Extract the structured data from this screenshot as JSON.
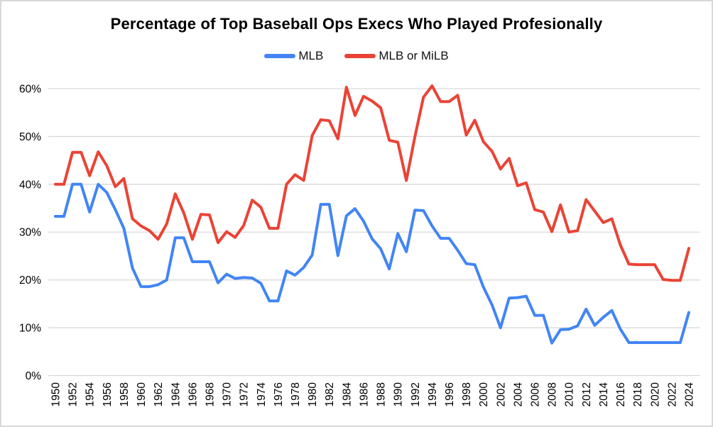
{
  "frame": {
    "background": "#ffffff",
    "border_color": "#d8d8d8"
  },
  "chart_data": {
    "type": "line",
    "title": "Percentage of Top Baseball Ops Execs Who Played Profesionally",
    "legend_position": "top",
    "grid": "horizontal",
    "gridline_color": "#d9d9d9",
    "ylim": [
      0,
      60
    ],
    "ytick_labels": [
      "0%",
      "10%",
      "20%",
      "30%",
      "40%",
      "50%",
      "60%"
    ],
    "xtick_step": 2,
    "x": [
      1950,
      1951,
      1952,
      1953,
      1954,
      1955,
      1956,
      1957,
      1958,
      1959,
      1960,
      1961,
      1962,
      1963,
      1964,
      1965,
      1966,
      1967,
      1968,
      1969,
      1970,
      1971,
      1972,
      1973,
      1974,
      1975,
      1976,
      1977,
      1978,
      1979,
      1980,
      1981,
      1982,
      1983,
      1984,
      1985,
      1986,
      1987,
      1988,
      1989,
      1990,
      1991,
      1992,
      1993,
      1994,
      1995,
      1996,
      1997,
      1998,
      1999,
      2000,
      2001,
      2002,
      2003,
      2004,
      2005,
      2006,
      2007,
      2008,
      2009,
      2010,
      2011,
      2012,
      2013,
      2014,
      2015,
      2016,
      2017,
      2018,
      2019,
      2020,
      2021,
      2022,
      2023,
      2024
    ],
    "series": [
      {
        "name": "MLB",
        "color": "#4285F4",
        "values": [
          33.3,
          33.3,
          40,
          40,
          34.2,
          40,
          38.3,
          34.7,
          30.8,
          22.5,
          18.6,
          18.6,
          19,
          20,
          28.8,
          28.8,
          23.8,
          23.8,
          23.8,
          19.4,
          21.2,
          20.3,
          20.5,
          20.4,
          19.3,
          15.6,
          15.6,
          21.9,
          21,
          22.6,
          25.2,
          35.8,
          35.8,
          25.1,
          33.4,
          34.9,
          32.3,
          28.6,
          26.5,
          22.3,
          29.7,
          25.9,
          34.6,
          34.5,
          31.3,
          28.7,
          28.7,
          26.2,
          23.4,
          23.2,
          18.5,
          14.8,
          10,
          16.2,
          16.3,
          16.6,
          12.6,
          12.6,
          6.8,
          9.6,
          9.7,
          10.4,
          13.9,
          10.5,
          12.2,
          13.6,
          9.7,
          6.9,
          6.9,
          6.9,
          6.9,
          6.9,
          6.9,
          6.9,
          13.2
        ]
      },
      {
        "name": "MLB or MiLB",
        "color": "#EA4335",
        "values": [
          40,
          40,
          46.7,
          46.7,
          41.8,
          46.8,
          43.9,
          39.5,
          41.2,
          32.8,
          31.3,
          30.3,
          28.5,
          31.7,
          38,
          34,
          28.5,
          33.7,
          33.6,
          27.8,
          30.1,
          28.9,
          31.4,
          36.7,
          35.2,
          30.8,
          30.8,
          40,
          42,
          40.8,
          50.2,
          53.5,
          53.3,
          49.5,
          60.3,
          54.4,
          58.4,
          57.4,
          56,
          49.2,
          48.8,
          40.8,
          50,
          58.2,
          60.6,
          57.3,
          57.3,
          58.6,
          50.3,
          53.4,
          48.9,
          46.9,
          43.2,
          45.4,
          39.7,
          40.3,
          34.7,
          34.2,
          30.1,
          35.7,
          30,
          30.3,
          36.8,
          34.4,
          32,
          32.8,
          27.3,
          23.3,
          23.2,
          23.2,
          23.2,
          20.1,
          19.9,
          19.9,
          26.6
        ]
      }
    ]
  }
}
